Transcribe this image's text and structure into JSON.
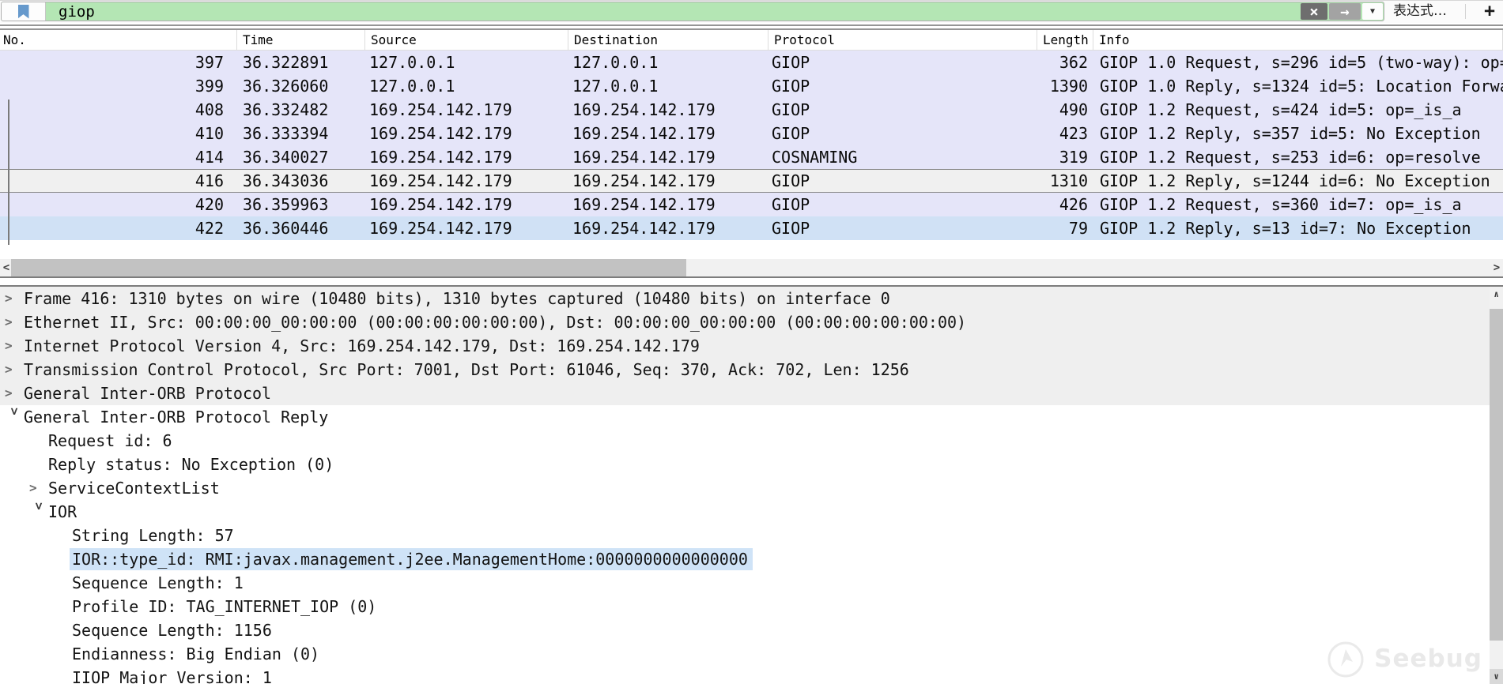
{
  "filter_bar": {
    "query": "giop",
    "expression_label": "表达式…",
    "add_label": "+",
    "clear_glyph": "×",
    "apply_glyph": "→",
    "dropdown_glyph": "▼",
    "filter_valid_color": "#b4e6b4",
    "bookmark_color": "#6699cc"
  },
  "packet_list": {
    "columns": [
      "No.",
      "Time",
      "Source",
      "Destination",
      "Protocol",
      "Length",
      "Info"
    ],
    "rows": [
      {
        "no": "397",
        "time": "36.322891",
        "source": "127.0.0.1",
        "destination": "127.0.0.1",
        "protocol": "GIOP",
        "length": "362",
        "info": "GIOP 1.0 Request, s=296 id=5 (two-way): op=",
        "variant": "default"
      },
      {
        "no": "399",
        "time": "36.326060",
        "source": "127.0.0.1",
        "destination": "127.0.0.1",
        "protocol": "GIOP",
        "length": "1390",
        "info": "GIOP 1.0 Reply, s=1324 id=5: Location Forwa",
        "variant": "default"
      },
      {
        "no": "408",
        "time": "36.332482",
        "source": "169.254.142.179",
        "destination": "169.254.142.179",
        "protocol": "GIOP",
        "length": "490",
        "info": "GIOP 1.2 Request, s=424 id=5: op=_is_a",
        "variant": "default"
      },
      {
        "no": "410",
        "time": "36.333394",
        "source": "169.254.142.179",
        "destination": "169.254.142.179",
        "protocol": "GIOP",
        "length": "423",
        "info": "GIOP 1.2 Reply, s=357 id=5: No Exception",
        "variant": "default"
      },
      {
        "no": "414",
        "time": "36.340027",
        "source": "169.254.142.179",
        "destination": "169.254.142.179",
        "protocol": "COSNAMING",
        "length": "319",
        "info": "GIOP 1.2 Request, s=253 id=6: op=resolve",
        "variant": "default"
      },
      {
        "no": "416",
        "time": "36.343036",
        "source": "169.254.142.179",
        "destination": "169.254.142.179",
        "protocol": "GIOP",
        "length": "1310",
        "info": "GIOP 1.2 Reply, s=1244 id=6: No Exception",
        "variant": "selected"
      },
      {
        "no": "420",
        "time": "36.359963",
        "source": "169.254.142.179",
        "destination": "169.254.142.179",
        "protocol": "GIOP",
        "length": "426",
        "info": "GIOP 1.2 Request, s=360 id=7: op=_is_a",
        "variant": "default"
      },
      {
        "no": "422",
        "time": "36.360446",
        "source": "169.254.142.179",
        "destination": "169.254.142.179",
        "protocol": "GIOP",
        "length": "79",
        "info": "GIOP 1.2 Reply, s=13 id=7: No Exception",
        "variant": "highlight"
      }
    ],
    "row_colors": {
      "default": "#e5e5f9",
      "selected": "#f0f0f0",
      "highlight": "#d0e1f5"
    }
  },
  "detail_pane": {
    "lines": [
      {
        "text": "Frame 416: 1310 bytes on wire (10480 bits), 1310 bytes captured (10480 bits) on interface 0",
        "chevron": "collapsed",
        "indent": 0,
        "bg": "gray",
        "selected": false
      },
      {
        "text": "Ethernet II, Src: 00:00:00_00:00:00 (00:00:00:00:00:00), Dst: 00:00:00_00:00:00 (00:00:00:00:00:00)",
        "chevron": "collapsed",
        "indent": 0,
        "bg": "gray",
        "selected": false
      },
      {
        "text": "Internet Protocol Version 4, Src: 169.254.142.179, Dst: 169.254.142.179",
        "chevron": "collapsed",
        "indent": 0,
        "bg": "gray",
        "selected": false
      },
      {
        "text": "Transmission Control Protocol, Src Port: 7001, Dst Port: 61046, Seq: 370, Ack: 702, Len: 1256",
        "chevron": "collapsed",
        "indent": 0,
        "bg": "gray",
        "selected": false
      },
      {
        "text": "General Inter-ORB Protocol",
        "chevron": "collapsed",
        "indent": 0,
        "bg": "gray",
        "selected": false
      },
      {
        "text": "General Inter-ORB Protocol Reply",
        "chevron": "expanded",
        "indent": 0,
        "bg": "white",
        "selected": false
      },
      {
        "text": "Request id: 6",
        "chevron": "none",
        "indent": 1,
        "bg": "white",
        "selected": false
      },
      {
        "text": "Reply status: No Exception (0)",
        "chevron": "none",
        "indent": 1,
        "bg": "white",
        "selected": false
      },
      {
        "text": "ServiceContextList",
        "chevron": "collapsed",
        "indent": 1,
        "bg": "white",
        "selected": false
      },
      {
        "text": "IOR",
        "chevron": "expanded",
        "indent": 1,
        "bg": "white",
        "selected": false
      },
      {
        "text": "String Length: 57",
        "chevron": "none",
        "indent": 2,
        "bg": "white",
        "selected": false
      },
      {
        "text": "IOR::type_id: RMI:javax.management.j2ee.ManagementHome:0000000000000000",
        "chevron": "none",
        "indent": 2,
        "bg": "white",
        "selected": true
      },
      {
        "text": "Sequence Length: 1",
        "chevron": "none",
        "indent": 2,
        "bg": "white",
        "selected": false
      },
      {
        "text": "Profile ID: TAG_INTERNET_IOP (0)",
        "chevron": "none",
        "indent": 2,
        "bg": "white",
        "selected": false
      },
      {
        "text": "Sequence Length: 1156",
        "chevron": "none",
        "indent": 2,
        "bg": "white",
        "selected": false
      },
      {
        "text": "Endianness: Big Endian (0)",
        "chevron": "none",
        "indent": 2,
        "bg": "white",
        "selected": false
      },
      {
        "text": "IIOP Major Version: 1",
        "chevron": "none",
        "indent": 2,
        "bg": "white",
        "selected": false
      }
    ],
    "selected_field_color": "#cfe3f7"
  },
  "scrollbars": {
    "left_glyph": "<",
    "right_glyph": ">",
    "up_glyph": "∧",
    "down_glyph": "∨"
  },
  "watermark": {
    "text": "Seebug"
  }
}
